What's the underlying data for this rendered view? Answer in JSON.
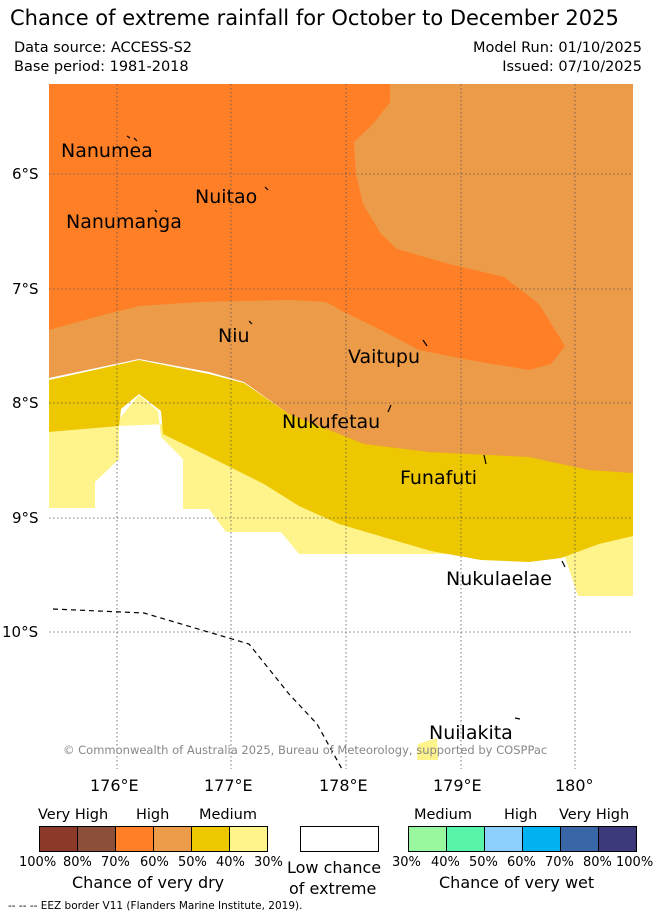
{
  "title": "Chance of extreme rainfall for October to December 2025",
  "data_source": "Data source: ACCESS-S2",
  "base_period": "Base period: 1981-2018",
  "model_run": "Model Run: 01/10/2025",
  "issued": "Issued: 07/10/2025",
  "colors": {
    "dry_very_high_1": "#8B3A2A",
    "dry_very_high_2": "#8C4F3A",
    "dry_high_1": "#FF7F27",
    "dry_high_2": "#EC9B48",
    "dry_medium_1": "#EDC700",
    "dry_medium_2": "#FFF38C",
    "low_chance": "#FFFFFF",
    "wet_medium_1": "#99F79D",
    "wet_medium_2": "#58F5A9",
    "wet_high_1": "#8CCFFF",
    "wet_high_2": "#00B3F0",
    "wet_very_high_1": "#3966A6",
    "wet_very_high_2": "#3C3A7A",
    "eez_border": "#000000"
  },
  "map": {
    "lat_labels": [
      "6°S",
      "7°S",
      "8°S",
      "9°S",
      "10°S"
    ],
    "lon_labels": [
      "176°E",
      "177°E",
      "178°E",
      "179°E",
      "180°"
    ],
    "islands": [
      {
        "name": "Nanumea"
      },
      {
        "name": "Nuitao"
      },
      {
        "name": "Nanumanga"
      },
      {
        "name": "Niu"
      },
      {
        "name": "Vaitupu"
      },
      {
        "name": "Nukufetau"
      },
      {
        "name": "Funafuti"
      },
      {
        "name": "Nukulaelae"
      },
      {
        "name": "Nuilakita"
      }
    ],
    "copyright": "© Commonwealth of Australia 2025, Bureau of Meteorology, supported by COSPPac"
  },
  "legend": {
    "dry": {
      "headers": [
        "Very High",
        "High",
        "Medium"
      ],
      "percent_labels": [
        "100%",
        "80%",
        "70%",
        "60%",
        "50%",
        "40%",
        "30%"
      ],
      "caption": "Chance of very dry"
    },
    "low": {
      "caption_line1": "Low chance",
      "caption_line2": "of extreme"
    },
    "wet": {
      "headers": [
        "Medium",
        "High",
        "Very High"
      ],
      "percent_labels": [
        "30%",
        "40%",
        "50%",
        "60%",
        "70%",
        "80%",
        "100%"
      ],
      "caption": "Chance of very wet"
    }
  },
  "eez_note": "--  --  -- EEZ border V11 (Flanders Marine Institute, 2019)."
}
